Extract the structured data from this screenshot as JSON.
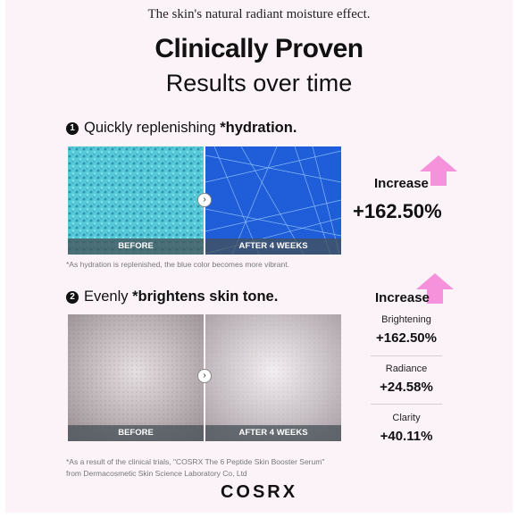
{
  "tagline": "The skin's natural radiant moisture effect.",
  "headline": "Clinically Proven",
  "subheadline": "Results over time",
  "section1": {
    "number": "1",
    "title_plain": "Quickly replenishing ",
    "title_bold": "*hydration.",
    "before_label": "BEFORE",
    "after_label": "AFTER 4 WEEKS",
    "note": "*As hydration is replenished, the blue color becomes more vibrant.",
    "increase_label": "Increase",
    "increase_value": "+162.50%"
  },
  "section2": {
    "number": "2",
    "title_plain": "Evenly ",
    "title_bold": "*brightens skin tone.",
    "before_label": "BEFORE",
    "after_label": "AFTER 4 WEEKS",
    "increase_label": "Increase",
    "metrics": [
      {
        "label": "Brightening",
        "value": "+162.50%"
      },
      {
        "label": "Radiance",
        "value": "+24.58%"
      },
      {
        "label": "Clarity",
        "value": "+40.11%"
      }
    ],
    "note_line1": "*As a result of the clinical trials, \"COSRX The 6 Peptide Skin Booster Serum\"",
    "note_line2": "from Dermacosmetic Skin Science Laboratory Co, Ltd"
  },
  "brand": "COSRX",
  "colors": {
    "accent_pink": "#f47fd6",
    "hydration_before": "#4fc6d6",
    "hydration_after": "#1e5fd6"
  },
  "icons": [
    "chevron-right-icon",
    "up-arrow-icon"
  ]
}
